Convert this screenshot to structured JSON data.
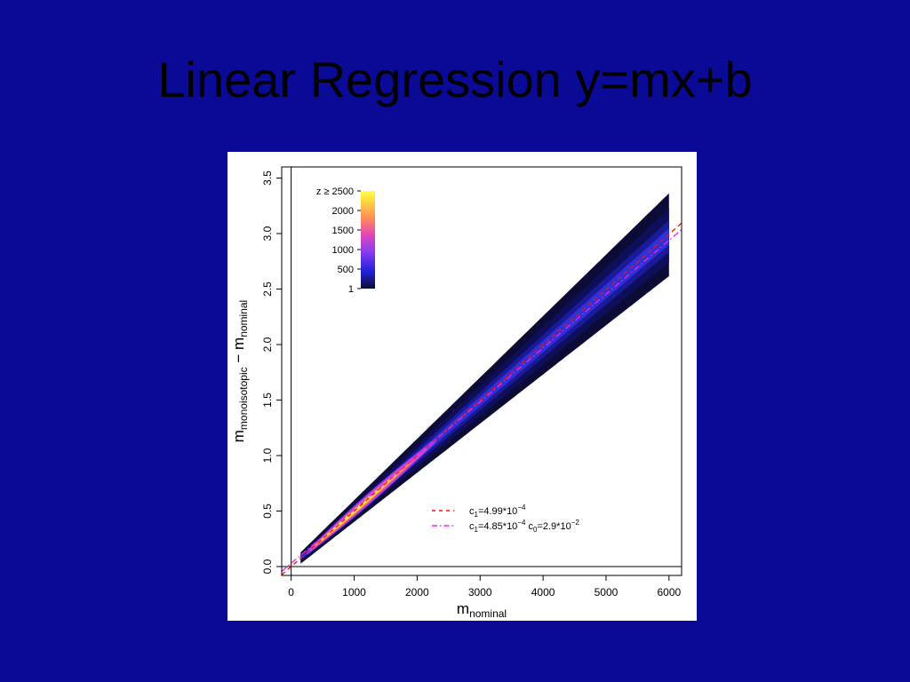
{
  "slide": {
    "title": "Linear Regression y=mx+b",
    "background": "#0a0a96",
    "title_color": "#000000"
  },
  "chart_data": {
    "type": "heatmap",
    "title": "",
    "xlabel": {
      "main": "m",
      "sub": "nominal"
    },
    "ylabel": {
      "main": "m",
      "sub": "monoisotopic",
      "minus": " − m",
      "sub2": "nominal"
    },
    "xlim": [
      -150,
      6200
    ],
    "ylim": [
      -0.08,
      3.6
    ],
    "x_ticks": [
      0,
      1000,
      2000,
      3000,
      4000,
      5000,
      6000
    ],
    "x_tick_labels": [
      "0",
      "1000",
      "2000",
      "3000",
      "4000",
      "5000",
      "6000"
    ],
    "y_ticks": [
      0.0,
      0.5,
      1.0,
      1.5,
      2.0,
      2.5,
      3.0,
      3.5
    ],
    "y_tick_labels": [
      "0.0",
      "0.5",
      "1.0",
      "1.5",
      "2.0",
      "2.5",
      "3.0",
      "3.5"
    ],
    "reference_lines": {
      "horizontal_y": 0,
      "vertical_x": 0
    },
    "colorbar": {
      "ticks": [
        2500,
        2000,
        1500,
        1000,
        500,
        1
      ],
      "tick_labels": [
        "z ≥ 2500",
        "2000",
        "1500",
        "1000",
        "500",
        "1"
      ],
      "colors": [
        "#0b0b35",
        "#2222dd",
        "#8a3cf0",
        "#e048b8",
        "#ff8c5a",
        "#ffd040",
        "#ffff44"
      ]
    },
    "density": {
      "x_range": [
        150,
        6000
      ],
      "center_slope": 0.000495,
      "peak_x": 1200,
      "peak_count": 2500
    },
    "fits": [
      {
        "name": "c1=4.99*10^-4",
        "color": "#ee1111",
        "dash": "dashed",
        "c1": 0.000499,
        "c0": 0,
        "label": {
          "c1_main": "c",
          "c1_sub": "1",
          "c1_val": "=4.99*10",
          "c1_exp": "−4"
        }
      },
      {
        "name": "c1=4.85*10^-4 c0=2.9*10^-2",
        "color": "#ee22ee",
        "dash": "dotdash",
        "c1": 0.000485,
        "c0": 0.029,
        "label": {
          "c1_main": "c",
          "c1_sub": "1",
          "c1_val": "=4.85*10",
          "c1_exp": "−4",
          "c0_main": " c",
          "c0_sub": "0",
          "c0_val": "=2.9*10",
          "c0_exp": "−2"
        }
      }
    ],
    "grid": false
  }
}
